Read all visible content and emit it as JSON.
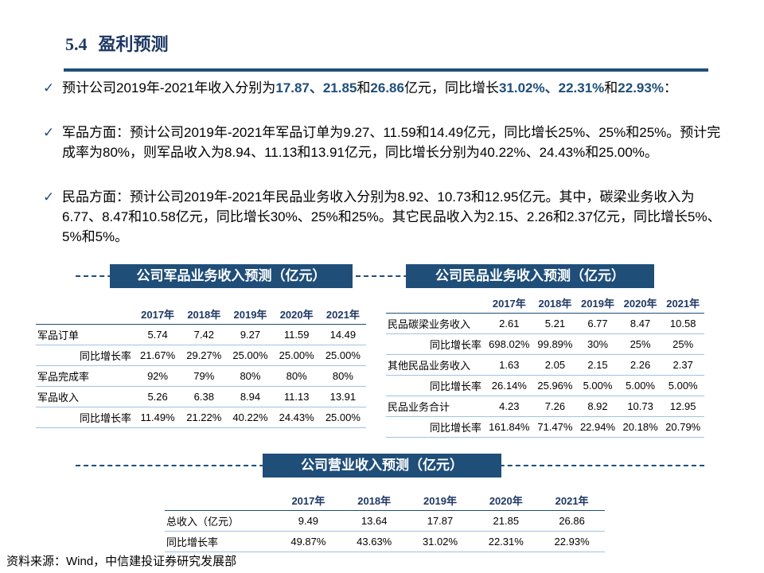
{
  "header": {
    "section": "5.4",
    "title": "盈利预测"
  },
  "bullets": [
    [
      {
        "text": "预计公司2019年-2021年收入分别为"
      },
      {
        "text": "17.87、21.85",
        "bold": true
      },
      {
        "text": "和"
      },
      {
        "text": "26.86",
        "bold": true
      },
      {
        "text": "亿元，同比增长"
      },
      {
        "text": "31.02%、22.31%",
        "bold": true
      },
      {
        "text": "和"
      },
      {
        "text": "22.93%",
        "bold": true
      },
      {
        "text": "："
      }
    ],
    [
      {
        "text": "军品方面：预计公司2019年-2021年军品订单为9.27、11.59和14.49亿元，同比增长25%、25%和25%。预计完成率为80%，则军品收入为8.94、11.13和13.91亿元，同比增长分别为40.22%、24.43%和25.00%。"
      }
    ],
    [
      {
        "text": "民品方面：预计公司2019年-2021年民品业务收入分别为8.92、10.73和12.95亿元。其中，碳梁业务收入为6.77、8.47和10.58亿元，同比增长30%、25%和25%。其它民品收入为2.15、2.26和2.37亿元，同比增长5%、5%和5%。"
      }
    ]
  ],
  "military_table": {
    "title": "公司军品业务收入预测（亿元）",
    "columns": [
      "2017年",
      "2018年",
      "2019年",
      "2020年",
      "2021年"
    ],
    "rows": [
      {
        "label": "军品订单",
        "values": [
          "5.74",
          "7.42",
          "9.27",
          "11.59",
          "14.49"
        ]
      },
      {
        "label": "同比增长率",
        "indent": true,
        "values": [
          "21.67%",
          "29.27%",
          "25.00%",
          "25.00%",
          "25.00%"
        ]
      },
      {
        "label": "军品完成率",
        "values": [
          "92%",
          "79%",
          "80%",
          "80%",
          "80%"
        ]
      },
      {
        "label": "军品收入",
        "values": [
          "5.26",
          "6.38",
          "8.94",
          "11.13",
          "13.91"
        ]
      },
      {
        "label": "同比增长率",
        "indent": true,
        "values": [
          "11.49%",
          "21.22%",
          "40.22%",
          "24.43%",
          "25.00%"
        ]
      }
    ]
  },
  "civil_table": {
    "title": "公司民品业务收入预测（亿元）",
    "columns": [
      "2017年",
      "2018年",
      "2019年",
      "2020年",
      "2021年"
    ],
    "rows": [
      {
        "label": "民品碳梁业务收入",
        "values": [
          "2.61",
          "5.21",
          "6.77",
          "8.47",
          "10.58"
        ]
      },
      {
        "label": "同比增长率",
        "indent": true,
        "values": [
          "698.02%",
          "99.89%",
          "30%",
          "25%",
          "25%"
        ]
      },
      {
        "label": "其他民品业务收入",
        "values": [
          "1.63",
          "2.05",
          "2.15",
          "2.26",
          "2.37"
        ]
      },
      {
        "label": "同比增长率",
        "indent": true,
        "values": [
          "26.14%",
          "25.96%",
          "5.00%",
          "5.00%",
          "5.00%"
        ]
      },
      {
        "label": "民品业务合计",
        "values": [
          "4.23",
          "7.26",
          "8.92",
          "10.73",
          "12.95"
        ]
      },
      {
        "label": "同比增长率",
        "indent": true,
        "values": [
          "161.84%",
          "71.47%",
          "22.94%",
          "20.18%",
          "20.79%"
        ]
      }
    ]
  },
  "total_table": {
    "title": "公司营业收入预测（亿元）",
    "columns": [
      "2017年",
      "2018年",
      "2019年",
      "2020年",
      "2021年"
    ],
    "rows": [
      {
        "label": "总收入（亿元）",
        "values": [
          "9.49",
          "13.64",
          "17.87",
          "21.85",
          "26.86"
        ]
      },
      {
        "label": "同比增长率",
        "values": [
          "49.87%",
          "43.63%",
          "31.02%",
          "22.31%",
          "22.93%"
        ]
      }
    ]
  },
  "source": "资料来源：Wind，中信建投证券研究发展部"
}
